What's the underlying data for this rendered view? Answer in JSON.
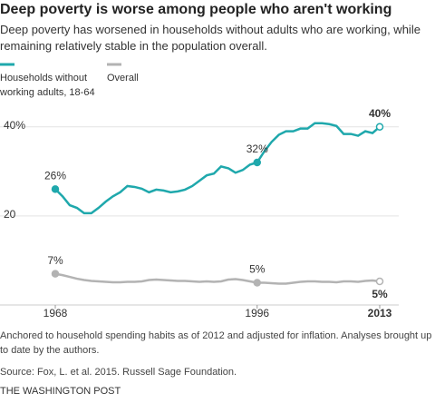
{
  "chart_data": {
    "type": "line",
    "title": "Deep poverty is worse among people who aren't working",
    "subtitle": "Deep poverty has worsened in households without adults who are working, while remaining relatively stable in the population overall.",
    "x": [
      1968,
      1969,
      1970,
      1971,
      1972,
      1973,
      1974,
      1975,
      1976,
      1977,
      1978,
      1979,
      1980,
      1981,
      1982,
      1983,
      1984,
      1985,
      1986,
      1987,
      1988,
      1989,
      1990,
      1991,
      1992,
      1993,
      1994,
      1995,
      1996,
      1997,
      1998,
      1999,
      2000,
      2001,
      2002,
      2003,
      2004,
      2005,
      2006,
      2007,
      2008,
      2009,
      2010,
      2011,
      2012,
      2013
    ],
    "series": [
      {
        "name": "Households without working adults, 18-64",
        "color": "#1fa8ac",
        "values": [
          26,
          24.4,
          22.4,
          21.8,
          20.6,
          20.6,
          21.8,
          23.2,
          24.4,
          25.3,
          26.7,
          26.5,
          26.1,
          25.3,
          25.9,
          25.7,
          25.3,
          25.5,
          25.9,
          26.7,
          27.9,
          29.1,
          29.5,
          31.1,
          30.7,
          29.7,
          30.3,
          31.5,
          32,
          34.5,
          36.6,
          38.2,
          39,
          39,
          39.6,
          39.6,
          40.8,
          40.8,
          40.6,
          40.2,
          38.4,
          38.4,
          38,
          39,
          38.6,
          40
        ],
        "value_labels": [
          "26%",
          null,
          null,
          null,
          null,
          null,
          null,
          null,
          null,
          null,
          null,
          null,
          null,
          null,
          null,
          null,
          null,
          null,
          null,
          null,
          null,
          null,
          null,
          null,
          null,
          null,
          null,
          null,
          "32%",
          null,
          null,
          null,
          null,
          null,
          null,
          null,
          null,
          null,
          null,
          null,
          null,
          null,
          null,
          null,
          null,
          "40%"
        ]
      },
      {
        "name": "Overall",
        "color": "#b3b3b3",
        "values": [
          7,
          6.7,
          6.3,
          5.9,
          5.6,
          5.4,
          5.3,
          5.2,
          5.1,
          5.1,
          5.2,
          5.2,
          5.3,
          5.6,
          5.7,
          5.6,
          5.5,
          5.4,
          5.4,
          5.3,
          5.2,
          5.3,
          5.2,
          5.3,
          5.7,
          5.8,
          5.6,
          5.3,
          5,
          5,
          4.9,
          4.8,
          4.8,
          5,
          5.2,
          5.3,
          5.3,
          5.2,
          5.2,
          5.1,
          5.3,
          5.3,
          5.2,
          5.4,
          5.5,
          5.3
        ],
        "value_labels": [
          "7%",
          null,
          null,
          null,
          null,
          null,
          null,
          null,
          null,
          null,
          null,
          null,
          null,
          null,
          null,
          null,
          null,
          null,
          null,
          null,
          null,
          null,
          null,
          null,
          null,
          null,
          null,
          null,
          "5%",
          null,
          null,
          null,
          null,
          null,
          null,
          null,
          null,
          null,
          null,
          null,
          null,
          null,
          null,
          null,
          null,
          "5%"
        ]
      }
    ],
    "xlim": [
      1968,
      2013
    ],
    "xticks": [
      1968,
      1996,
      2013
    ],
    "ylim": [
      0,
      43
    ],
    "yticks": [
      {
        "value": 20,
        "label": "20"
      },
      {
        "value": 40,
        "label": "40%"
      }
    ],
    "grid": true,
    "notes": "Anchored to household spending habits as of 2012 and adjusted for inflation. Analyses brought up to date by the authors.",
    "source": "Source: Fox, L. et al. 2015. Russell Sage Foundation.",
    "credit": "THE WASHINGTON POST"
  }
}
